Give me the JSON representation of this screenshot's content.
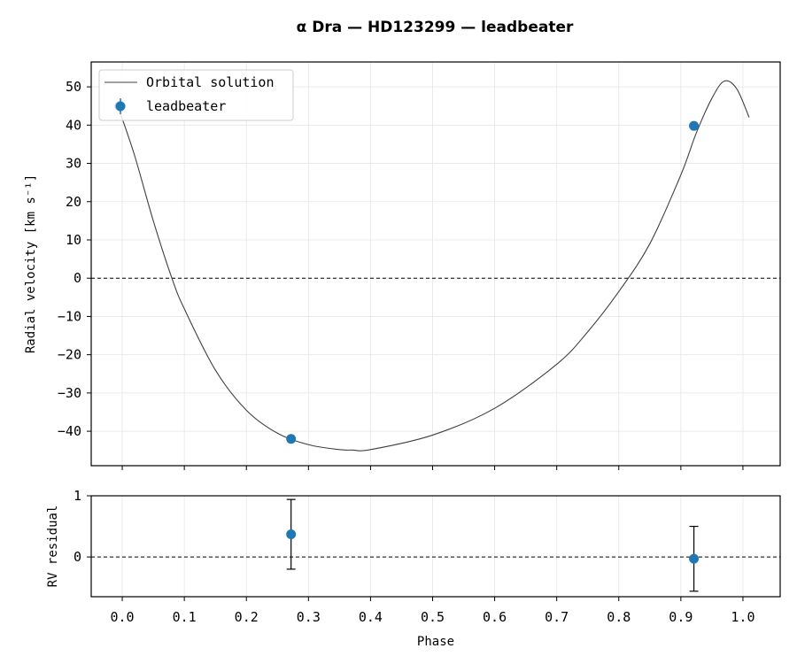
{
  "chart_data": [
    {
      "panel": "top",
      "type": "line",
      "title": "α Dra — HD123299 — leadbeater",
      "xlabel": "",
      "ylabel": "Radial velocity [km s⁻¹]",
      "xlim": [
        -0.05,
        1.06
      ],
      "ylim": [
        -49,
        56.5
      ],
      "xticks": [
        0.0,
        0.1,
        0.2,
        0.3,
        0.4,
        0.5,
        0.6,
        0.7,
        0.8,
        0.9,
        1.0
      ],
      "yticks": [
        -40,
        -30,
        -20,
        -10,
        0,
        10,
        20,
        30,
        40,
        50
      ],
      "ytick_labels": [
        "−40",
        "−30",
        "−20",
        "−10",
        "0",
        "10",
        "20",
        "30",
        "40",
        "50"
      ],
      "grid": true,
      "zero_line": 0,
      "legend": "upper-left",
      "series": [
        {
          "name": "Orbital solution",
          "kind": "line",
          "color": "#404040",
          "x": [
            -0.005,
            0.02,
            0.05,
            0.08,
            0.1,
            0.15,
            0.2,
            0.25,
            0.3,
            0.35,
            0.37,
            0.4,
            0.5,
            0.6,
            0.7,
            0.75,
            0.8,
            0.85,
            0.9,
            0.925,
            0.95,
            0.97,
            0.99,
            1.01
          ],
          "y": [
            44,
            32,
            15,
            0,
            -8,
            -24,
            -34.5,
            -40.5,
            -43.5,
            -44.8,
            -44.9,
            -44.8,
            -41,
            -34,
            -22.5,
            -14,
            -3.5,
            9,
            27,
            38,
            47,
            51.5,
            49.5,
            42
          ]
        },
        {
          "name": "leadbeater",
          "kind": "scatter",
          "color": "#1f77b4",
          "x": [
            -0.005,
            0.272,
            0.921
          ],
          "y": [
            45,
            -42,
            39.8
          ],
          "yerr": [
            1.0,
            0.5,
            0.5
          ]
        }
      ]
    },
    {
      "panel": "bottom",
      "type": "scatter",
      "xlabel": "Phase",
      "ylabel": "RV residual",
      "xlim": [
        -0.05,
        1.06
      ],
      "ylim": [
        -0.65,
        1.0
      ],
      "xticks": [
        0.0,
        0.1,
        0.2,
        0.3,
        0.4,
        0.5,
        0.6,
        0.7,
        0.8,
        0.9,
        1.0
      ],
      "xtick_labels": [
        "0.0",
        "0.1",
        "0.2",
        "0.3",
        "0.4",
        "0.5",
        "0.6",
        "0.7",
        "0.8",
        "0.9",
        "1.0"
      ],
      "yticks": [
        0,
        1
      ],
      "ytick_labels": [
        "0",
        "1"
      ],
      "grid": true,
      "zero_line": 0,
      "series": [
        {
          "name": "leadbeater",
          "color": "#1f77b4",
          "x": [
            0.272,
            0.921
          ],
          "y": [
            0.37,
            -0.03
          ],
          "yerr": [
            0.57,
            0.53
          ]
        }
      ]
    }
  ]
}
